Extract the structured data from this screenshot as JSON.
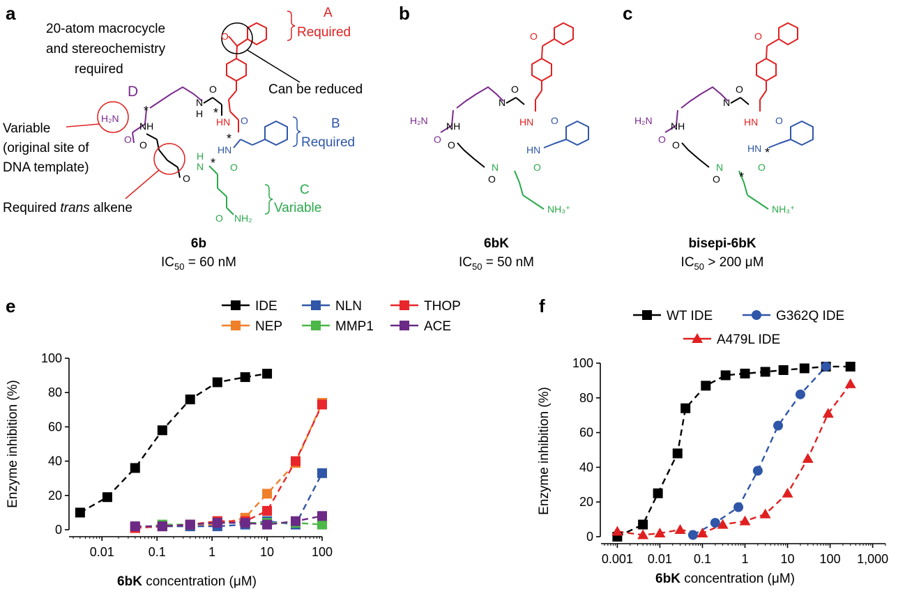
{
  "panel_labels": {
    "a": "a",
    "b": "b",
    "c": "c",
    "e": "e",
    "f": "f"
  },
  "structures": {
    "a": {
      "compound": "6b",
      "ic50": "= 60 nM",
      "annotations": {
        "macrocycle": [
          "20-atom macrocycle",
          "and stereochemistry",
          "required"
        ],
        "reduced": "Can be reduced",
        "variable": [
          "Variable",
          "(original site of",
          "DNA template)"
        ],
        "alkene_prefix": "Required ",
        "alkene_italic": "trans",
        "alkene_suffix": " alkene",
        "region_A": "A",
        "region_A_note": "Required",
        "region_B": "B",
        "region_B_note": "Required",
        "region_C": "C",
        "region_C_note": "Variable",
        "region_D": "D"
      }
    },
    "b": {
      "compound": "6bK",
      "ic50": "= 50 nM"
    },
    "c": {
      "compound": "bisepi-6bK",
      "ic50": "> 200 μM"
    },
    "atoms": {
      "h2n": "H₂N",
      "nh": "NH",
      "hn": "HN",
      "n": "N",
      "o": "O",
      "h": "H",
      "nh2": "NH₂",
      "nh3": "NH₃⁺",
      "star": "*"
    },
    "ic50_prefix": "IC",
    "ic50_sub": "50"
  },
  "colors": {
    "red": "#e02020",
    "blue": "#2f56a8",
    "green": "#29a84a",
    "purple": "#7a2a8c",
    "black": "#000000",
    "orange": "#f07f2a",
    "violet": "#6b2a86"
  },
  "chart_data": [
    {
      "panel": "e",
      "type": "scatter",
      "xscale": "log",
      "xlabel_bold": "6bK",
      "xlabel_rest": " concentration (μM)",
      "ylabel": "Enzyme inhibition (%)",
      "ylim": [
        0,
        100
      ],
      "xticks": [
        "0.01",
        "0.1",
        "1",
        "10",
        "100"
      ],
      "xtick_values": [
        0.01,
        0.1,
        1,
        10,
        100
      ],
      "yticks": [
        "0",
        "20",
        "40",
        "60",
        "80",
        "100"
      ],
      "legend_position": "top",
      "series": [
        {
          "name": "IDE",
          "color": "#000000",
          "marker": "square",
          "x": [
            0.004,
            0.0125,
            0.04,
            0.125,
            0.4,
            1.25,
            4,
            10
          ],
          "y": [
            10,
            19,
            36,
            58,
            76,
            86,
            89,
            91
          ]
        },
        {
          "name": "NEP",
          "color": "#f07f2a",
          "marker": "square",
          "x": [
            0.04,
            0.125,
            0.4,
            1.25,
            4,
            10,
            33,
            100
          ],
          "y": [
            1,
            2,
            2,
            3,
            7,
            21,
            39,
            74
          ]
        },
        {
          "name": "NLN",
          "color": "#2f56a8",
          "marker": "square",
          "x": [
            0.04,
            0.125,
            0.4,
            1.25,
            4,
            10,
            33,
            100
          ],
          "y": [
            1,
            2,
            2,
            2,
            3,
            5,
            3,
            33
          ]
        },
        {
          "name": "MMP1",
          "color": "#4cb848",
          "marker": "square",
          "x": [
            0.04,
            0.125,
            0.4,
            1.25,
            4,
            10,
            33,
            100
          ],
          "y": [
            1,
            3,
            3,
            5,
            4,
            4,
            4,
            3
          ]
        },
        {
          "name": "THOP",
          "color": "#e8262b",
          "marker": "square",
          "x": [
            0.04,
            0.125,
            0.4,
            1.25,
            4,
            10,
            33,
            100
          ],
          "y": [
            1,
            2,
            3,
            5,
            5,
            11,
            40,
            73
          ]
        },
        {
          "name": "ACE",
          "color": "#6b2a86",
          "marker": "square",
          "x": [
            0.04,
            0.125,
            0.4,
            1.25,
            4,
            10,
            33,
            100
          ],
          "y": [
            2,
            2,
            3,
            4,
            4,
            3,
            5,
            8
          ]
        }
      ]
    },
    {
      "panel": "f",
      "type": "scatter",
      "xscale": "log",
      "xlabel_bold": "6bK",
      "xlabel_rest": " concentration (μM)",
      "ylabel": "Enzyme inhibition (%)",
      "ylim": [
        0,
        100
      ],
      "xticks": [
        "0.001",
        "0.01",
        "0.1",
        "1",
        "10",
        "100",
        "1,000"
      ],
      "xtick_values": [
        0.001,
        0.01,
        0.1,
        1,
        10,
        100,
        1000
      ],
      "yticks": [
        "0",
        "20",
        "40",
        "60",
        "80",
        "100"
      ],
      "legend_position": "top",
      "series": [
        {
          "name": "WT IDE",
          "color": "#000000",
          "marker": "square",
          "x": [
            0.001,
            0.004,
            0.009,
            0.026,
            0.04,
            0.12,
            0.35,
            1.0,
            3.0,
            8.0,
            25,
            80,
            300
          ],
          "y": [
            0,
            7,
            25,
            48,
            74,
            87,
            93,
            94,
            95,
            96,
            97,
            98,
            98
          ]
        },
        {
          "name": "G362Q IDE",
          "color": "#2f56a8",
          "marker": "circle",
          "x": [
            0.06,
            0.2,
            0.7,
            2.0,
            6.0,
            20,
            80
          ],
          "y": [
            1,
            8,
            17,
            38,
            64,
            82,
            98
          ]
        },
        {
          "name": "A479L IDE",
          "color": "#e02020",
          "marker": "triangle",
          "x": [
            0.001,
            0.004,
            0.01,
            0.03,
            0.1,
            0.3,
            1.0,
            3.0,
            10,
            30,
            90,
            300
          ],
          "y": [
            3,
            1,
            2,
            4,
            2,
            7,
            9,
            13,
            25,
            45,
            71,
            88
          ]
        }
      ]
    }
  ]
}
